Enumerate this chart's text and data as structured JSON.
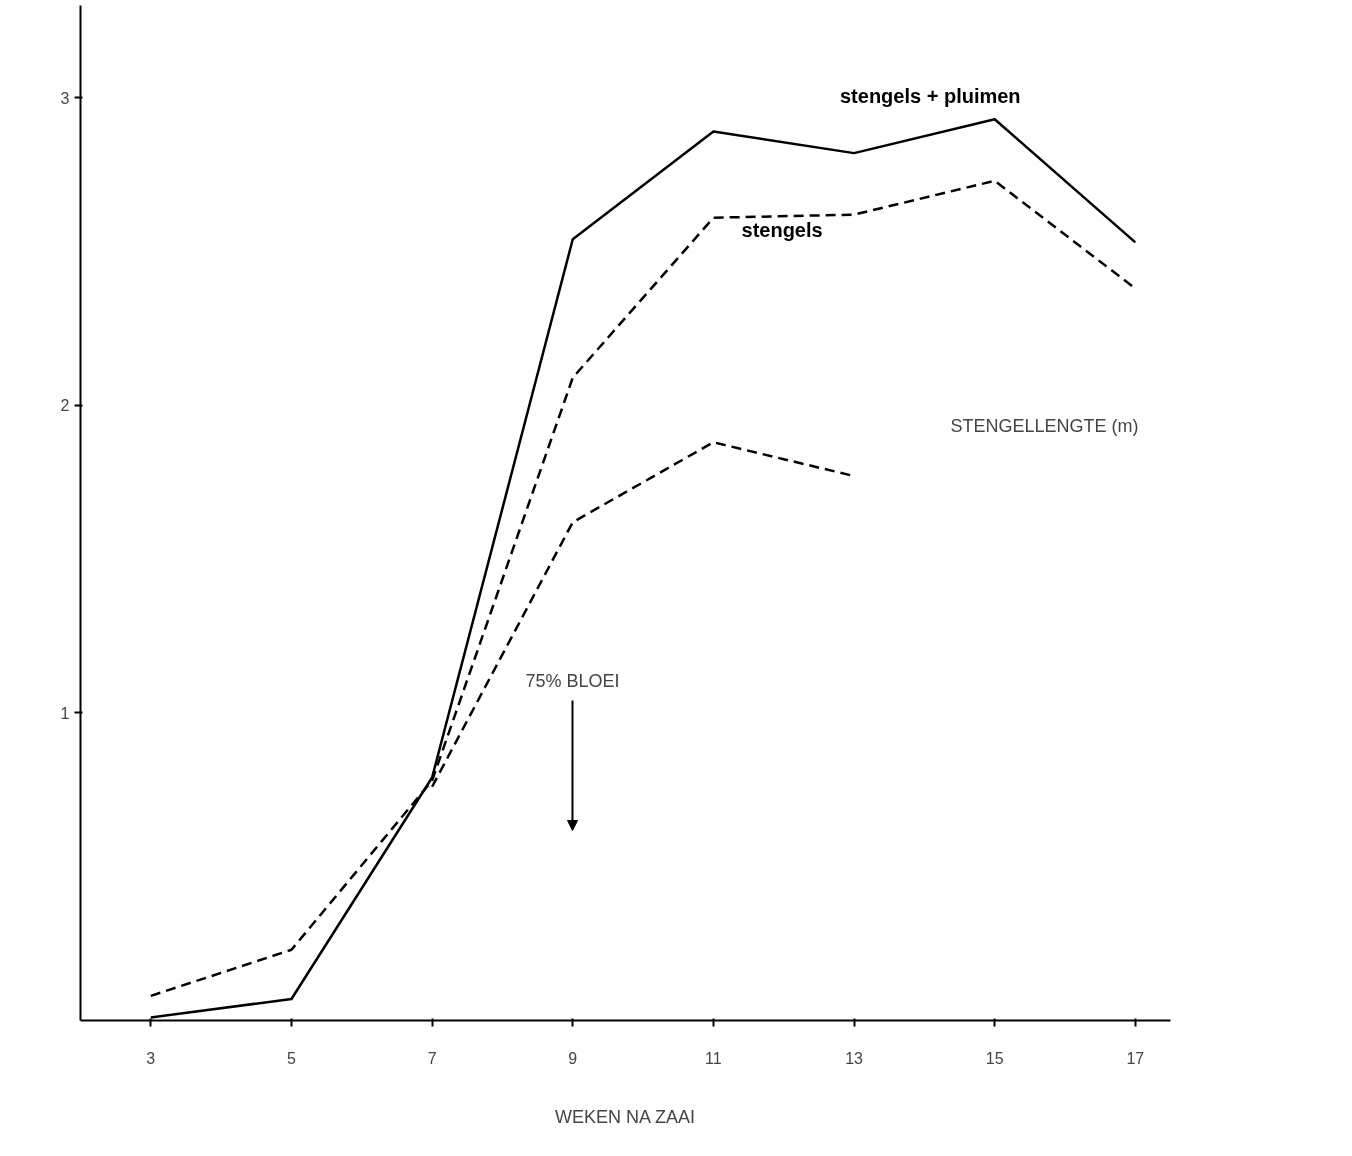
{
  "chart_data": {
    "type": "line",
    "xlabel": "WEKEN NA ZAAI",
    "ylabel": "STENGELLENGTE (m)",
    "x": [
      3,
      5,
      7,
      9,
      11,
      13,
      15,
      17
    ],
    "series": [
      {
        "name": "stengels + pluimen",
        "color": "#000000",
        "line_style": "solid",
        "values": [
          0.01,
          0.07,
          0.79,
          2.54,
          2.89,
          2.82,
          2.93,
          2.53
        ]
      },
      {
        "name": "stengels",
        "color": "#000000",
        "line_style": "dashed",
        "values": [
          0.08,
          0.23,
          0.78,
          2.09,
          2.61,
          2.62,
          2.73,
          2.38
        ]
      },
      {
        "color": "#000000",
        "line_style": "dashed",
        "values": [
          null,
          null,
          0.76,
          1.62,
          1.88,
          1.77,
          null,
          null
        ]
      }
    ],
    "xlim": [
      2,
      17.5
    ],
    "ylim": [
      0,
      3.3
    ],
    "xticks": [
      3,
      5,
      7,
      9,
      11,
      13,
      15,
      17
    ],
    "yticks": [
      1,
      2,
      3
    ],
    "annotations": [
      "75% BLOEI"
    ]
  }
}
